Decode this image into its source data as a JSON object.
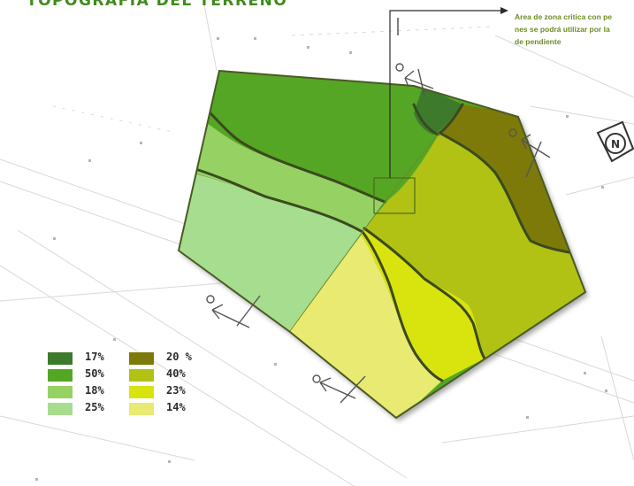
{
  "title": "TOPOGRAFIA DEL TERRENO",
  "annotation": {
    "lines": [
      "Area de zona critica con pe",
      "nes se podrá utilizar por la",
      "de pendiente"
    ]
  },
  "north_symbol": "N",
  "colors": {
    "slope_17": "#3d7a2c",
    "slope_50": "#55a624",
    "slope_18": "#96d163",
    "slope_25": "#a7dd8e",
    "slope_20": "#7d7a0a",
    "slope_40": "#b2c214",
    "slope_23": "#d9e30e",
    "slope_14": "#e9ea72"
  },
  "legend": [
    {
      "label": "17%",
      "color": "#3d7a2c"
    },
    {
      "label": "50%",
      "color": "#55a624"
    },
    {
      "label": "18%",
      "color": "#96d163"
    },
    {
      "label": "25%",
      "color": "#a7dd8e"
    },
    {
      "label": "20 %",
      "color": "#7d7a0a"
    },
    {
      "label": "40%",
      "color": "#b2c214"
    },
    {
      "label": "23%",
      "color": "#d9e30e"
    },
    {
      "label": "14%",
      "color": "#e9ea72"
    }
  ]
}
